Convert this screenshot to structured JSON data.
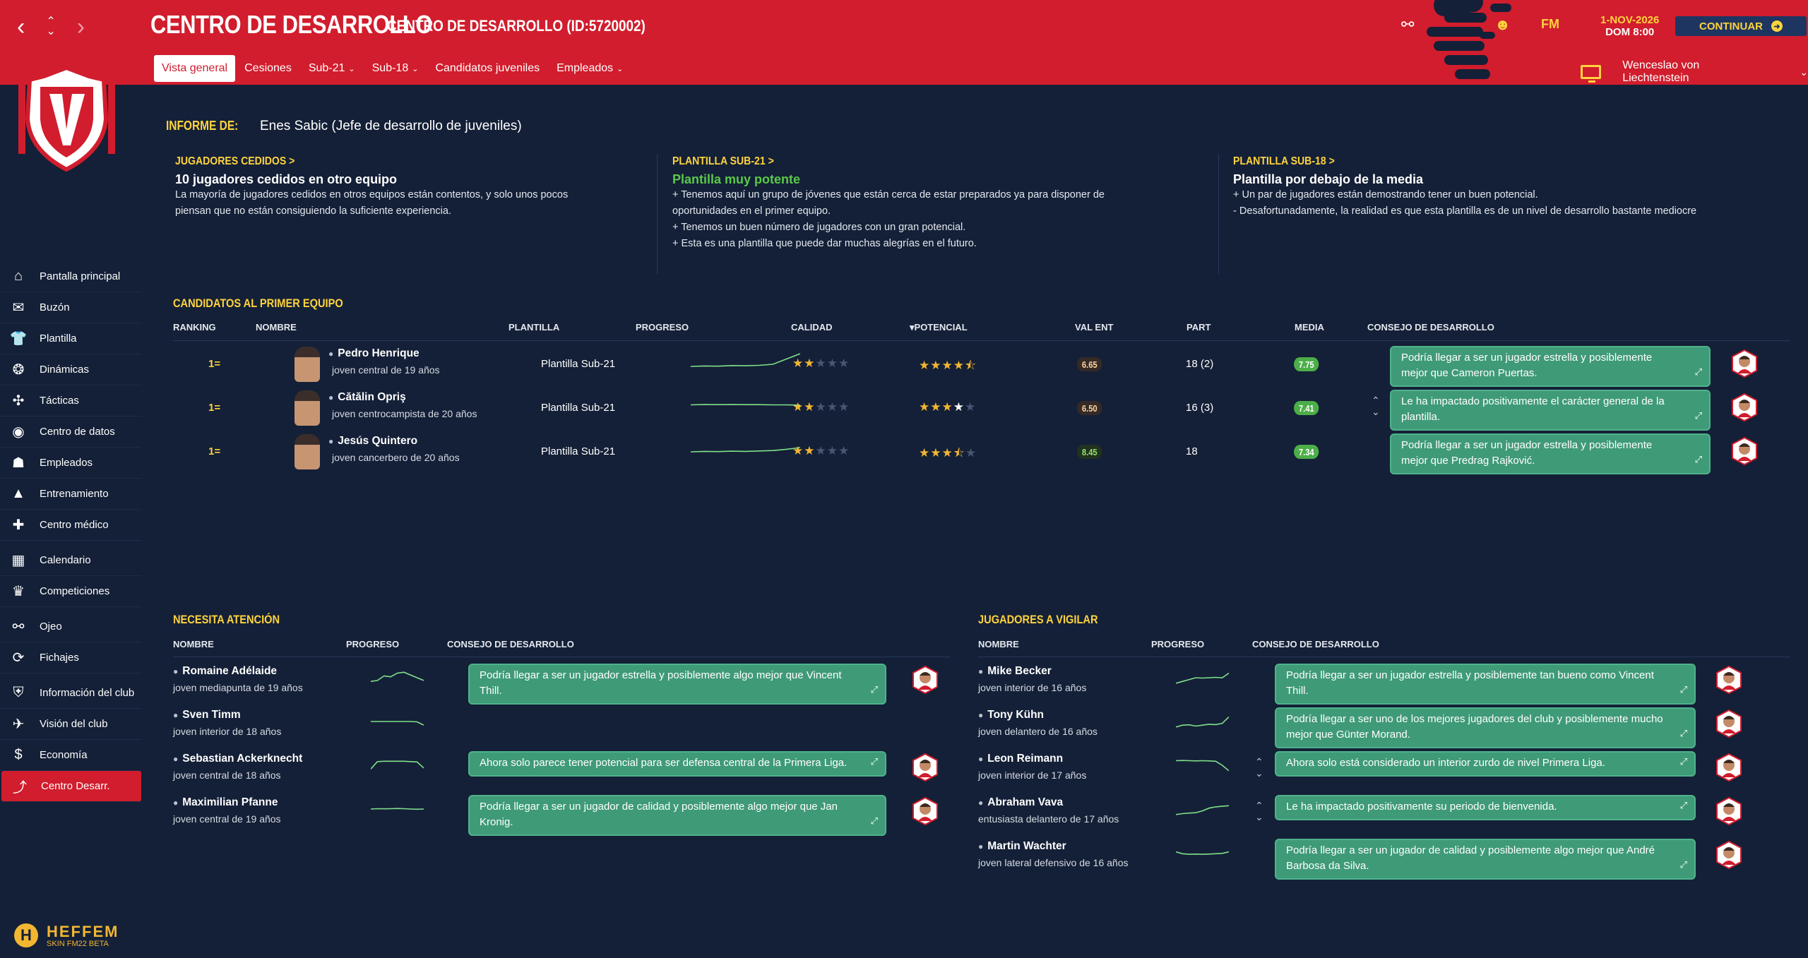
{
  "header": {
    "title": "CENTRO DE DESARROLLO",
    "subtitle": "CENTRO DE DESARROLLO (ID:5720002)",
    "date_line1": "1-NOV-2026",
    "date_line2": "DOM 8:00",
    "continue_label": "CONTINUAR",
    "fm_label": "FM",
    "manager_name": "Wenceslao von Liechtenstein",
    "nav_icons": [
      "back-arrow-icon",
      "up-down-icon",
      "forward-arrow-icon"
    ],
    "right_icons": [
      "binoculars-icon",
      "help-icon",
      "fm-icon"
    ],
    "brand_color": "#d11d2d",
    "accent_color": "#ffd33d"
  },
  "tabs": [
    {
      "label": "Vista general",
      "active": true,
      "dropdown": false
    },
    {
      "label": "Cesiones",
      "active": false,
      "dropdown": false
    },
    {
      "label": "Sub-21",
      "active": false,
      "dropdown": true
    },
    {
      "label": "Sub-18",
      "active": false,
      "dropdown": true
    },
    {
      "label": "Candidatos juveniles",
      "active": false,
      "dropdown": false
    },
    {
      "label": "Empleados",
      "active": false,
      "dropdown": true
    }
  ],
  "sidebar": {
    "items": [
      {
        "label": "Pantalla principal",
        "icon": "home-icon"
      },
      {
        "label": "Buzón",
        "icon": "mail-icon"
      },
      {
        "label": "Plantilla",
        "icon": "shirt-icon"
      },
      {
        "label": "Dinámicas",
        "icon": "brain-icon"
      },
      {
        "label": "Tácticas",
        "icon": "tactics-icon"
      },
      {
        "label": "Centro de datos",
        "icon": "data-icon"
      },
      {
        "label": "Empleados",
        "icon": "staff-icon"
      },
      {
        "label": "Entrenamiento",
        "icon": "cone-icon"
      },
      {
        "label": "Centro médico",
        "icon": "medical-icon"
      },
      {
        "label": "Calendario",
        "icon": "calendar-icon"
      },
      {
        "label": "Competiciones",
        "icon": "trophy-icon"
      },
      {
        "label": "Ojeo",
        "icon": "binoculars-icon"
      },
      {
        "label": "Fichajes",
        "icon": "transfer-icon"
      },
      {
        "label": "Información del club",
        "icon": "club-icon"
      },
      {
        "label": "Visión del club",
        "icon": "vision-icon"
      },
      {
        "label": "Economía",
        "icon": "money-icon"
      },
      {
        "label": "Centro Desarr.",
        "icon": "development-icon",
        "active": true
      }
    ],
    "footer_brand": "HEFFEM",
    "footer_sub": "SKIN FM22 BETA",
    "footer_logo_letter": "H"
  },
  "report": {
    "label": "INFORME DE:",
    "author": "Enes Sabic (Jefe de desarrollo de juveniles)"
  },
  "summaries": [
    {
      "link": "JUGADORES CEDIDOS >",
      "heading": "10 jugadores cedidos en otro equipo",
      "heading_green": false,
      "lines": [
        "La mayoría de jugadores cedidos en otros equipos están contentos, y solo unos pocos",
        "piensan que no están consiguiendo la suficiente experiencia."
      ]
    },
    {
      "link": "PLANTILLA SUB-21 >",
      "heading": "Plantilla muy potente",
      "heading_green": true,
      "lines": [
        "+ Tenemos aquí un grupo de jóvenes que están cerca de estar preparados ya para disponer de",
        "oportunidades en el primer equipo.",
        "+ Tenemos un buen número de jugadores con un gran potencial.",
        "+ Esta es una plantilla que puede dar muchas alegrías en el futuro."
      ]
    },
    {
      "link": "PLANTILLA SUB-18 >",
      "heading": "Plantilla por debajo de la media",
      "heading_green": false,
      "lines": [
        "+ Un par de jugadores están demostrando tener un buen potencial.",
        "- Desafortunadamente, la realidad es que esta plantilla es de un nivel de desarrollo bastante mediocre"
      ]
    }
  ],
  "candidates": {
    "title": "CANDIDATOS AL PRIMER EQUIPO",
    "columns": [
      "RANKING",
      "NOMBRE",
      "PLANTILLA",
      "PROGRESO",
      "CALIDAD",
      "POTENCIAL",
      "VAL ENT",
      "PART",
      "MEDIA",
      "CONSEJO DE DESARROLLO"
    ],
    "sort_column": "POTENCIAL",
    "rows": [
      {
        "rank": "1=",
        "name": "Pedro Henrique",
        "desc": "joven central de 19 años",
        "squad": "Plantilla Sub-21",
        "progress": [
          0.2,
          0.22,
          0.21,
          0.24,
          0.23,
          0.25,
          0.3,
          0.55,
          0.8
        ],
        "quality": 2,
        "potential": 4.5,
        "training": "6.65",
        "training_good": false,
        "apps": "18 (2)",
        "avg": "7.75",
        "advice": "Podría llegar a ser un jugador estrella y posiblemente mejor que Cameron Puertas.",
        "updown": false
      },
      {
        "rank": "1=",
        "name": "Cătălin Opriş",
        "desc": "joven centrocampista de 20 años",
        "squad": "Plantilla Sub-21",
        "progress": [
          0.45,
          0.47,
          0.46,
          0.47,
          0.46,
          0.46,
          0.45,
          0.45,
          0.44
        ],
        "quality": 2,
        "potential": 4,
        "potential_white": true,
        "training": "6.50",
        "training_good": false,
        "apps": "16 (3)",
        "avg": "7.41",
        "advice": "Le ha impactado positivamente el carácter general de la plantilla.",
        "updown": true
      },
      {
        "rank": "1=",
        "name": "Jesús Quintero",
        "desc": "joven cancerbero de 20 años",
        "squad": "Plantilla Sub-21",
        "progress": [
          0.3,
          0.32,
          0.31,
          0.33,
          0.32,
          0.34,
          0.36,
          0.42,
          0.5
        ],
        "quality": 2,
        "potential": 3.5,
        "training": "8.45",
        "training_good": true,
        "apps": "18",
        "avg": "7.34",
        "advice": "Podría llegar a ser un jugador estrella y posiblemente mejor que Predrag Rajković.",
        "updown": false
      }
    ]
  },
  "attention": {
    "title": "NECESITA ATENCIÓN",
    "columns": [
      "NOMBRE",
      "PROGRESO",
      "CONSEJO DE DESARROLLO"
    ],
    "rows": [
      {
        "name": "Romaine Adélaide",
        "desc": "joven mediapunta de 19 años",
        "progress": [
          0.3,
          0.35,
          0.6,
          0.55,
          0.75,
          0.8,
          0.65,
          0.5,
          0.35
        ],
        "advice": "Podría llegar a ser un jugador estrella y posiblemente algo mejor que Vincent Thill.",
        "updown": false
      },
      {
        "name": "Sven Timm",
        "desc": "joven interior de 18 años",
        "progress": [
          0.5,
          0.5,
          0.5,
          0.5,
          0.5,
          0.5,
          0.5,
          0.48,
          0.3
        ],
        "advice": "",
        "updown": false
      },
      {
        "name": "Sebastian Ackerknecht",
        "desc": "joven central de 18 años",
        "progress": [
          0.3,
          0.7,
          0.72,
          0.72,
          0.72,
          0.72,
          0.7,
          0.68,
          0.35
        ],
        "advice": "Ahora solo parece tener potencial para ser defensa central de la Primera Liga.",
        "updown": false
      },
      {
        "name": "Maximilian Pfanne",
        "desc": "joven central de 19 años",
        "progress": [
          0.5,
          0.52,
          0.51,
          0.52,
          0.53,
          0.52,
          0.5,
          0.49,
          0.5
        ],
        "advice": "Podría llegar a ser un jugador de calidad y posiblemente algo mejor que Jan Kronig.",
        "updown": false
      }
    ]
  },
  "watch": {
    "title": "JUGADORES A VIGILAR",
    "columns": [
      "NOMBRE",
      "PROGRESO",
      "CONSEJO DE DESARROLLO"
    ],
    "rows": [
      {
        "name": "Mike Becker",
        "desc": "joven interior de 16 años",
        "progress": [
          0.2,
          0.3,
          0.4,
          0.5,
          0.48,
          0.5,
          0.52,
          0.5,
          0.75
        ],
        "advice": "Podría llegar a ser un jugador estrella y posiblemente tan bueno como Vincent Thill.",
        "updown": false
      },
      {
        "name": "Tony Kühn",
        "desc": "joven delantero de 16 años",
        "progress": [
          0.2,
          0.3,
          0.32,
          0.25,
          0.3,
          0.35,
          0.33,
          0.4,
          0.75
        ],
        "advice": "Podría llegar a ser uno de los mejores jugadores del club y posiblemente mucho mejor que Günter Morand.",
        "updown": false
      },
      {
        "name": "Leon Reimann",
        "desc": "joven interior de 17 años",
        "progress": [
          0.75,
          0.76,
          0.75,
          0.74,
          0.75,
          0.74,
          0.72,
          0.5,
          0.2
        ],
        "advice": "Ahora solo está considerado un interior zurdo de nivel Primera Liga.",
        "updown": true
      },
      {
        "name": "Abraham Vava",
        "desc": "entusiasta delantero de 17 años",
        "progress": [
          0.2,
          0.25,
          0.28,
          0.3,
          0.4,
          0.55,
          0.62,
          0.65,
          0.68
        ],
        "advice": "Le ha impactado positivamente su periodo de bienvenida.",
        "updown": true
      },
      {
        "name": "Martin Wachter",
        "desc": "joven lateral defensivo de 16 años",
        "progress": [
          0.55,
          0.45,
          0.42,
          0.43,
          0.42,
          0.43,
          0.45,
          0.47,
          0.55
        ],
        "advice": "Podría llegar a ser un jugador de calidad y posiblemente algo mejor que André Barbosa da Silva.",
        "updown": false
      }
    ]
  }
}
